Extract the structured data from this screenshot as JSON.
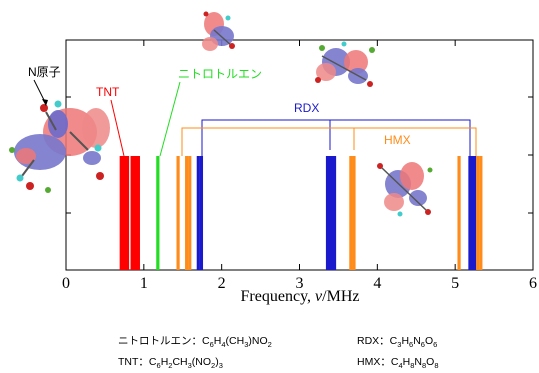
{
  "chart_data": {
    "type": "bar",
    "xlabel": "Frequency,",
    "xlabel_symbol": "ν",
    "xlabel_unit": "/MHz",
    "xlim": [
      0,
      6
    ],
    "xticks": [
      "0",
      "1",
      "2",
      "3",
      "4",
      "5",
      "6"
    ],
    "grid": false,
    "series": [
      {
        "name": "TNT",
        "color": "#ff0000",
        "x": [
          0.71,
          0.74,
          0.77,
          0.79,
          0.85,
          0.88,
          0.9,
          0.93
        ]
      },
      {
        "name": "ニトロトルエン",
        "color": "#22dd22",
        "x": [
          1.18
        ]
      },
      {
        "name": "RDX",
        "color": "#1a1acc",
        "x": [
          1.7,
          1.74,
          3.36,
          3.39,
          3.42,
          3.45,
          5.19,
          5.22,
          5.25
        ]
      },
      {
        "name": "HMX",
        "color": "#ff8c1a",
        "x": [
          1.44,
          1.55,
          1.59,
          3.66,
          3.7,
          5.05,
          5.29,
          5.33
        ]
      }
    ],
    "annotations": {
      "n_atom": "N原子"
    }
  },
  "formulas": {
    "nitrotoluene": {
      "name": "ニトロトルエン",
      "sep": "：",
      "formula": [
        "C",
        "6",
        "H",
        "4",
        "(CH",
        "3",
        ")NO",
        "2"
      ]
    },
    "tnt": {
      "name": "TNT",
      "sep": "：",
      "formula": [
        "C",
        "6",
        "H",
        "2",
        "CH",
        "3",
        "(NO",
        "2",
        ")",
        "3"
      ]
    },
    "rdx": {
      "name": "RDX",
      "sep": "：",
      "formula": [
        "C",
        "3",
        "H",
        "6",
        "N",
        "6",
        "O",
        "6"
      ]
    },
    "hmx": {
      "name": "HMX",
      "sep": "：",
      "formula": [
        "C",
        "4",
        "H",
        "8",
        "N",
        "8",
        "O",
        "8"
      ]
    }
  }
}
